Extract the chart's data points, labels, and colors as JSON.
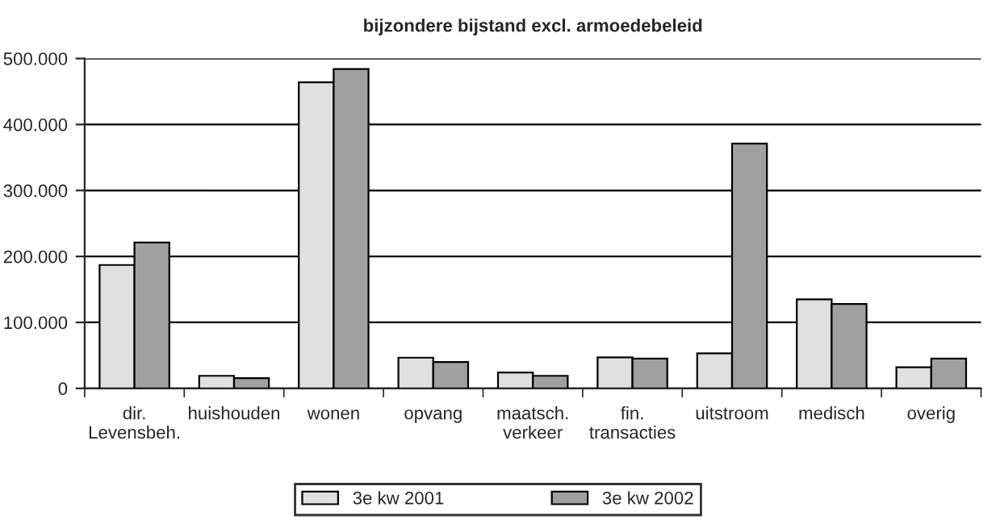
{
  "chart_data": {
    "type": "bar",
    "title": "bijzondere bijstand excl. armoedebeleid",
    "categories": [
      "dir.\nLevensbeh.",
      "huishouden",
      "wonen",
      "opvang",
      "maatsch.\nverkeer",
      "fin.\ntransacties",
      "uitstroom",
      "medisch",
      "overig"
    ],
    "series": [
      {
        "name": "3e kw 2001",
        "color": "#e0e0e0",
        "values": [
          187000,
          19000,
          464000,
          46500,
          24000,
          47000,
          53000,
          135000,
          32000
        ]
      },
      {
        "name": "3e kw 2002",
        "color": "#a0a0a0",
        "values": [
          221000,
          15500,
          484000,
          40000,
          19000,
          45000,
          371000,
          128000,
          45000
        ]
      }
    ],
    "ylim": [
      0,
      500000
    ],
    "yticks": [
      {
        "value": 0,
        "label": "0"
      },
      {
        "value": 100000,
        "label": "100.000"
      },
      {
        "value": 200000,
        "label": "200.000"
      },
      {
        "value": 300000,
        "label": "300.000"
      },
      {
        "value": 400000,
        "label": "400.000"
      },
      {
        "value": 500000,
        "label": "500.000"
      }
    ],
    "grid": "y",
    "legend": "bottom"
  }
}
